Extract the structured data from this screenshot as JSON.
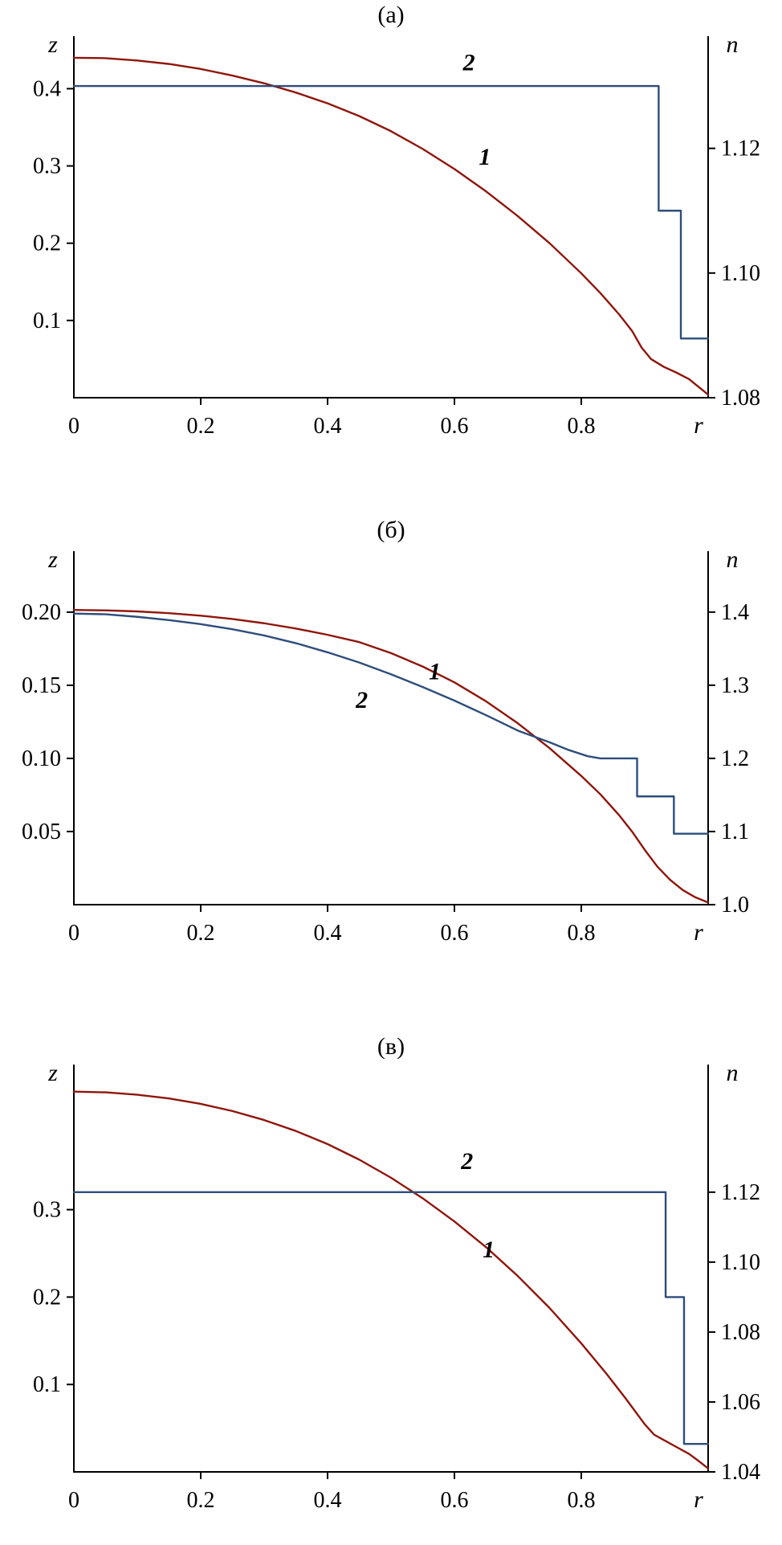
{
  "figure": {
    "background": "#ffffff",
    "axis_color": "#000000",
    "curve1_color": "#8f160c",
    "curve2_color": "#2e4d7b"
  },
  "chart_data": [
    {
      "type": "line",
      "title": "(а)",
      "grid": false,
      "legend": "none",
      "x_axis": {
        "label": "r",
        "origin_label": "0",
        "range": [
          0,
          1
        ],
        "ticks": [
          {
            "v": 0.2,
            "t": "0.2"
          },
          {
            "v": 0.4,
            "t": "0.4"
          },
          {
            "v": 0.6,
            "t": "0.6"
          },
          {
            "v": 0.8,
            "t": "0.8"
          }
        ]
      },
      "left_axis": {
        "label": "z",
        "range": [
          0,
          0.468
        ],
        "ticks": [
          {
            "v": 0.1,
            "t": "0.1"
          },
          {
            "v": 0.2,
            "t": "0.2"
          },
          {
            "v": 0.3,
            "t": "0.3"
          },
          {
            "v": 0.4,
            "t": "0.4"
          }
        ]
      },
      "right_axis": {
        "label": "n",
        "range": [
          1.08,
          1.138
        ],
        "ticks": [
          {
            "v": 1.08,
            "t": "1.08"
          },
          {
            "v": 1.1,
            "t": "1.10"
          },
          {
            "v": 1.12,
            "t": "1.12"
          }
        ]
      },
      "series": [
        {
          "name": "1",
          "axis": "left",
          "style": "smooth",
          "color": "#8f160c",
          "points": [
            [
              0,
              0.44
            ],
            [
              0.05,
              0.4395
            ],
            [
              0.1,
              0.4365
            ],
            [
              0.15,
              0.432
            ],
            [
              0.2,
              0.4255
            ],
            [
              0.25,
              0.417
            ],
            [
              0.3,
              0.407
            ],
            [
              0.35,
              0.395
            ],
            [
              0.4,
              0.381
            ],
            [
              0.45,
              0.3645
            ],
            [
              0.5,
              0.345
            ],
            [
              0.55,
              0.322
            ],
            [
              0.6,
              0.296
            ],
            [
              0.65,
              0.267
            ],
            [
              0.7,
              0.235
            ],
            [
              0.75,
              0.2
            ],
            [
              0.8,
              0.161
            ],
            [
              0.83,
              0.1355
            ],
            [
              0.86,
              0.1075
            ],
            [
              0.88,
              0.0865
            ],
            [
              0.895,
              0.065
            ],
            [
              0.91,
              0.05
            ],
            [
              0.93,
              0.04
            ],
            [
              0.95,
              0.0325
            ],
            [
              0.97,
              0.024
            ],
            [
              0.985,
              0.014
            ],
            [
              1,
              0.004
            ]
          ]
        },
        {
          "name": "2",
          "axis": "right",
          "style": "step",
          "color": "#2e4d7b",
          "points": [
            [
              0,
              1.13
            ],
            [
              0.922,
              1.13
            ],
            [
              0.922,
              1.11
            ],
            [
              0.957,
              1.11
            ],
            [
              0.957,
              1.0895
            ],
            [
              1,
              1.0895
            ]
          ]
        }
      ],
      "labels": [
        {
          "text": "1",
          "axis": "left",
          "x": 0.648,
          "y": 0.3016
        },
        {
          "text": "2",
          "axis": "right",
          "x": 0.623,
          "y": 1.1325
        }
      ]
    },
    {
      "type": "line",
      "title": "(б)",
      "grid": false,
      "legend": "none",
      "x_axis": {
        "label": "r",
        "origin_label": "0",
        "range": [
          0,
          1
        ],
        "ticks": [
          {
            "v": 0.2,
            "t": "0.2"
          },
          {
            "v": 0.4,
            "t": "0.4"
          },
          {
            "v": 0.6,
            "t": "0.6"
          },
          {
            "v": 0.8,
            "t": "0.8"
          }
        ]
      },
      "left_axis": {
        "label": "z",
        "range": [
          0,
          0.2417
        ],
        "ticks": [
          {
            "v": 0.05,
            "t": "0.05"
          },
          {
            "v": 0.1,
            "t": "0.10"
          },
          {
            "v": 0.15,
            "t": "0.15"
          },
          {
            "v": 0.2,
            "t": "0.20"
          }
        ]
      },
      "right_axis": {
        "label": "n",
        "range": [
          1.0,
          1.4833
        ],
        "ticks": [
          {
            "v": 1.0,
            "t": "1.0"
          },
          {
            "v": 1.1,
            "t": "1.1"
          },
          {
            "v": 1.2,
            "t": "1.2"
          },
          {
            "v": 1.3,
            "t": "1.3"
          },
          {
            "v": 1.4,
            "t": "1.4"
          }
        ]
      },
      "series": [
        {
          "name": "1",
          "axis": "left",
          "style": "smooth",
          "color": "#8f160c",
          "points": [
            [
              0,
              0.2015
            ],
            [
              0.05,
              0.2012
            ],
            [
              0.1,
              0.2005
            ],
            [
              0.15,
              0.1993
            ],
            [
              0.2,
              0.1976
            ],
            [
              0.25,
              0.1953
            ],
            [
              0.3,
              0.1924
            ],
            [
              0.35,
              0.1888
            ],
            [
              0.4,
              0.1845
            ],
            [
              0.45,
              0.1795
            ],
            [
              0.5,
              0.172
            ],
            [
              0.55,
              0.1628
            ],
            [
              0.6,
              0.152
            ],
            [
              0.65,
              0.139
            ],
            [
              0.7,
              0.124
            ],
            [
              0.75,
              0.107
            ],
            [
              0.8,
              0.088
            ],
            [
              0.83,
              0.0755
            ],
            [
              0.86,
              0.061
            ],
            [
              0.88,
              0.05
            ],
            [
              0.9,
              0.0375
            ],
            [
              0.92,
              0.026
            ],
            [
              0.94,
              0.017
            ],
            [
              0.96,
              0.01
            ],
            [
              0.98,
              0.005
            ],
            [
              1,
              0.0015
            ]
          ]
        },
        {
          "name": "2",
          "axis": "right",
          "style": "smooth-then-step",
          "color": "#2e4d7b",
          "points": [
            [
              0,
              1.398
            ],
            [
              0.05,
              1.397
            ],
            [
              0.1,
              1.3935
            ],
            [
              0.15,
              1.389
            ],
            [
              0.2,
              1.3835
            ],
            [
              0.25,
              1.3765
            ],
            [
              0.3,
              1.368
            ],
            [
              0.35,
              1.3575
            ],
            [
              0.4,
              1.345
            ],
            [
              0.45,
              1.331
            ],
            [
              0.5,
              1.315
            ],
            [
              0.55,
              1.2975
            ],
            [
              0.6,
              1.279
            ],
            [
              0.65,
              1.259
            ],
            [
              0.7,
              1.238
            ],
            [
              0.75,
              1.222
            ],
            [
              0.78,
              1.2115
            ],
            [
              0.81,
              1.203
            ],
            [
              0.83,
              1.2
            ],
            [
              0.888,
              1.2
            ],
            [
              0.888,
              1.148
            ],
            [
              0.946,
              1.148
            ],
            [
              0.946,
              1.097
            ],
            [
              1,
              1.097
            ]
          ]
        }
      ],
      "labels": [
        {
          "text": "1",
          "axis": "left",
          "x": 0.569,
          "y": 0.154
        },
        {
          "text": "2",
          "axis": "right",
          "x": 0.454,
          "y": 1.269
        }
      ]
    },
    {
      "type": "line",
      "title": "(в)",
      "grid": false,
      "legend": "none",
      "x_axis": {
        "label": "r",
        "origin_label": "0",
        "range": [
          0,
          1
        ],
        "ticks": [
          {
            "v": 0.2,
            "t": "0.2"
          },
          {
            "v": 0.4,
            "t": "0.4"
          },
          {
            "v": 0.6,
            "t": "0.6"
          },
          {
            "v": 0.8,
            "t": "0.8"
          }
        ]
      },
      "left_axis": {
        "label": "z",
        "range": [
          0,
          0.466
        ],
        "ticks": [
          {
            "v": 0.1,
            "t": "0.1"
          },
          {
            "v": 0.2,
            "t": "0.2"
          },
          {
            "v": 0.3,
            "t": "0.3"
          }
        ]
      },
      "right_axis": {
        "label": "n",
        "range": [
          1.04,
          1.1565
        ],
        "ticks": [
          {
            "v": 1.04,
            "t": "1.04"
          },
          {
            "v": 1.06,
            "t": "1.06"
          },
          {
            "v": 1.08,
            "t": "1.08"
          },
          {
            "v": 1.1,
            "t": "1.10"
          },
          {
            "v": 1.12,
            "t": "1.12"
          }
        ]
      },
      "series": [
        {
          "name": "1",
          "axis": "left",
          "style": "smooth",
          "color": "#8f160c",
          "points": [
            [
              0,
              0.435
            ],
            [
              0.05,
              0.4342
            ],
            [
              0.1,
              0.4315
            ],
            [
              0.15,
              0.4272
            ],
            [
              0.2,
              0.421
            ],
            [
              0.25,
              0.4128
            ],
            [
              0.3,
              0.4025
            ],
            [
              0.35,
              0.39
            ],
            [
              0.4,
              0.375
            ],
            [
              0.45,
              0.3572
            ],
            [
              0.5,
              0.3365
            ],
            [
              0.55,
              0.313
            ],
            [
              0.6,
              0.2865
            ],
            [
              0.65,
              0.257
            ],
            [
              0.7,
              0.224
            ],
            [
              0.75,
              0.1875
            ],
            [
              0.8,
              0.147
            ],
            [
              0.84,
              0.112
            ],
            [
              0.87,
              0.084
            ],
            [
              0.9,
              0.0545
            ],
            [
              0.915,
              0.0425
            ],
            [
              0.93,
              0.0365
            ],
            [
              0.95,
              0.0285
            ],
            [
              0.97,
              0.0205
            ],
            [
              0.985,
              0.0125
            ],
            [
              1,
              0.004
            ]
          ]
        },
        {
          "name": "2",
          "axis": "right",
          "style": "step",
          "color": "#2e4d7b",
          "points": [
            [
              0,
              1.12
            ],
            [
              0.933,
              1.12
            ],
            [
              0.933,
              1.09
            ],
            [
              0.962,
              1.09
            ],
            [
              0.962,
              1.048
            ],
            [
              1,
              1.048
            ]
          ]
        }
      ],
      "labels": [
        {
          "text": "1",
          "axis": "left",
          "x": 0.654,
          "y": 0.2454
        },
        {
          "text": "2",
          "axis": "right",
          "x": 0.62,
          "y": 1.1266
        }
      ]
    }
  ]
}
